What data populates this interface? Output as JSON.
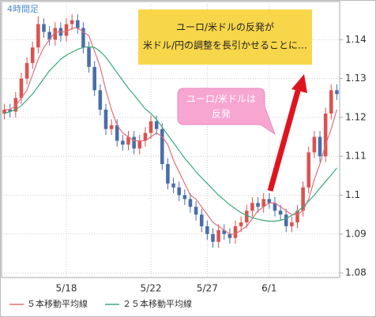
{
  "chart_data": {
    "type": "candlestick",
    "timeframe_label": "4時間足",
    "ylim": [
      1.0788,
      1.1498
    ],
    "yticks": [
      1.08,
      1.09,
      1.1,
      1.11,
      1.12,
      1.13,
      1.14
    ],
    "xticks": [
      {
        "value": 11,
        "label": "5/18"
      },
      {
        "value": 26,
        "label": "5/22"
      },
      {
        "value": 36,
        "label": "5/27"
      },
      {
        "value": 47,
        "label": "6/1"
      }
    ],
    "grid": true,
    "up_color": "#d9534f",
    "down_color": "#4a6ea9",
    "open": [
      1.121,
      1.122,
      1.1215,
      1.125,
      1.13,
      1.134,
      1.138,
      1.144,
      1.142,
      1.14,
      1.143,
      1.141,
      1.144,
      1.145,
      1.143,
      1.138,
      1.133,
      1.127,
      1.122,
      1.117,
      1.118,
      1.114,
      1.113,
      1.115,
      1.112,
      1.114,
      1.116,
      1.119,
      1.117,
      1.108,
      1.103,
      1.102,
      1.1,
      1.099,
      1.097,
      1.095,
      1.092,
      1.09,
      1.088,
      1.091,
      1.09,
      1.089,
      1.092,
      1.093,
      1.096,
      1.098,
      1.097,
      1.099,
      1.098,
      1.096,
      1.095,
      1.092,
      1.093,
      1.096,
      1.102,
      1.111,
      1.115,
      1.11,
      1.121,
      1.127
    ],
    "high": [
      1.1235,
      1.1235,
      1.1265,
      1.1315,
      1.1355,
      1.1395,
      1.146,
      1.1455,
      1.1435,
      1.1445,
      1.1445,
      1.1455,
      1.1465,
      1.1465,
      1.1445,
      1.1395,
      1.1345,
      1.1285,
      1.1235,
      1.1195,
      1.1195,
      1.1155,
      1.1165,
      1.1165,
      1.1155,
      1.1175,
      1.1205,
      1.1205,
      1.1185,
      1.1095,
      1.1045,
      1.1035,
      1.1015,
      1.1005,
      1.0985,
      1.0965,
      1.0935,
      1.0915,
      1.0925,
      1.0925,
      1.0915,
      1.0935,
      1.0945,
      1.0975,
      1.0995,
      1.0995,
      1.1005,
      1.1005,
      1.0995,
      1.0975,
      1.0965,
      1.0945,
      1.0975,
      1.1035,
      1.1125,
      1.1165,
      1.1165,
      1.1225,
      1.1285,
      1.1285
    ],
    "low": [
      1.1195,
      1.12,
      1.12,
      1.1235,
      1.1285,
      1.1325,
      1.1365,
      1.1405,
      1.1385,
      1.1385,
      1.1395,
      1.1395,
      1.1425,
      1.1415,
      1.1365,
      1.1315,
      1.1255,
      1.1205,
      1.1155,
      1.1155,
      1.1125,
      1.1115,
      1.1115,
      1.1105,
      1.1105,
      1.1125,
      1.1145,
      1.1155,
      1.1065,
      1.1015,
      1.1005,
      1.0985,
      1.0975,
      1.0955,
      1.0935,
      1.0905,
      1.0885,
      1.0865,
      1.0865,
      1.0885,
      1.0875,
      1.0875,
      1.0905,
      1.0915,
      1.0945,
      1.0955,
      1.0955,
      1.0965,
      1.0945,
      1.0935,
      1.0905,
      1.0905,
      1.0915,
      1.0945,
      1.1005,
      1.1095,
      1.1085,
      1.1085,
      1.1195,
      1.1245
    ],
    "close": [
      1.122,
      1.1215,
      1.125,
      1.13,
      1.134,
      1.138,
      1.144,
      1.142,
      1.14,
      1.143,
      1.141,
      1.144,
      1.145,
      1.143,
      1.138,
      1.133,
      1.127,
      1.122,
      1.117,
      1.118,
      1.114,
      1.113,
      1.115,
      1.112,
      1.114,
      1.116,
      1.119,
      1.117,
      1.108,
      1.103,
      1.102,
      1.1,
      1.099,
      1.097,
      1.095,
      1.092,
      1.09,
      1.088,
      1.091,
      1.09,
      1.089,
      1.092,
      1.093,
      1.096,
      1.098,
      1.097,
      1.099,
      1.098,
      1.096,
      1.095,
      1.092,
      1.093,
      1.096,
      1.102,
      1.111,
      1.115,
      1.11,
      1.121,
      1.127,
      1.126
    ],
    "series": [
      {
        "name": "５本移動平均線",
        "color": "#e0707a",
        "values": [
          1.122,
          1.122,
          1.123,
          1.125,
          1.127,
          1.131,
          1.135,
          1.138,
          1.14,
          1.142,
          1.142,
          1.142,
          1.143,
          1.143,
          1.142,
          1.141,
          1.137,
          1.133,
          1.127,
          1.122,
          1.118,
          1.116,
          1.115,
          1.114,
          1.114,
          1.114,
          1.115,
          1.116,
          1.115,
          1.113,
          1.109,
          1.106,
          1.103,
          1.1,
          1.099,
          1.097,
          1.095,
          1.093,
          1.092,
          1.091,
          1.09,
          1.09,
          1.091,
          1.092,
          1.094,
          1.096,
          1.097,
          1.098,
          1.098,
          1.097,
          1.096,
          1.095,
          1.095,
          1.096,
          1.099,
          1.104,
          1.108,
          1.113,
          1.117,
          1.122
        ]
      },
      {
        "name": "２５本移動平均線",
        "color": "#3aaa7a",
        "values": [
          1.121,
          1.1215,
          1.122,
          1.123,
          1.1245,
          1.126,
          1.128,
          1.13,
          1.132,
          1.1335,
          1.135,
          1.136,
          1.1368,
          1.1375,
          1.138,
          1.1382,
          1.138,
          1.137,
          1.1355,
          1.1335,
          1.1315,
          1.1295,
          1.1275,
          1.1258,
          1.124,
          1.1222,
          1.121,
          1.1195,
          1.1175,
          1.1155,
          1.1135,
          1.1115,
          1.1095,
          1.1078,
          1.106,
          1.1045,
          1.103,
          1.1015,
          1.1,
          1.0988,
          1.0975,
          1.0965,
          1.0955,
          1.0948,
          1.0942,
          1.0938,
          1.0935,
          1.0933,
          1.0933,
          1.0935,
          1.094,
          1.0948,
          1.0958,
          1.097,
          1.0985,
          1.1,
          1.1018,
          1.1035,
          1.1052,
          1.107
        ]
      }
    ],
    "annotations": [
      [
        "ユーロ/米ドルの反発が",
        "米ドル/円の調整を長引かせることに…"
      ],
      [
        "ユーロ/米ドルは",
        "反発"
      ]
    ]
  }
}
